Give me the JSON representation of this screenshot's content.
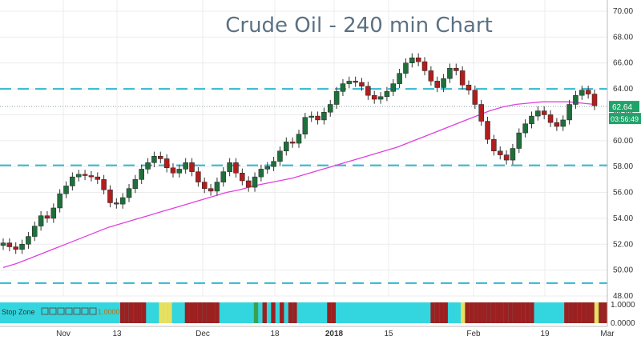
{
  "chart_data": {
    "type": "candlestick",
    "title": "Crude Oil - 240 min Chart",
    "ylim": [
      48.0,
      70.0
    ],
    "y_ticks": [
      "70.00",
      "68.00",
      "66.00",
      "64.00",
      "62.00",
      "60.00",
      "58.00",
      "56.00",
      "54.00",
      "52.00",
      "50.00",
      "48.00"
    ],
    "x_ticks": [
      "Nov",
      "13",
      "Dec",
      "18",
      "2018",
      "15",
      "Feb",
      "19",
      "Mar"
    ],
    "price_label": "62.64",
    "countdown_label": "03:56:49",
    "horizontal_levels": [
      64.0,
      58.1,
      49.0
    ],
    "close_series": [
      52.1,
      51.8,
      51.6,
      52.0,
      52.6,
      53.4,
      54.2,
      54.0,
      54.8,
      55.9,
      56.5,
      57.2,
      57.4,
      57.3,
      57.2,
      57.0,
      56.2,
      55.2,
      55.1,
      55.6,
      56.3,
      57.0,
      57.8,
      58.3,
      58.8,
      58.6,
      57.9,
      57.5,
      57.8,
      58.3,
      57.6,
      56.8,
      56.3,
      56.1,
      56.8,
      57.6,
      58.3,
      57.5,
      56.9,
      56.4,
      57.2,
      57.8,
      58.0,
      58.4,
      59.2,
      59.9,
      59.8,
      60.5,
      61.8,
      61.9,
      61.6,
      62.2,
      62.8,
      63.8,
      64.4,
      64.6,
      64.5,
      64.2,
      63.5,
      63.2,
      63.4,
      63.8,
      64.4,
      65.2,
      66.0,
      66.4,
      66.1,
      65.4,
      64.6,
      64.1,
      64.8,
      65.6,
      65.4,
      64.3,
      63.9,
      62.8,
      61.5,
      60.1,
      59.2,
      58.9,
      58.5,
      59.4,
      60.6,
      61.3,
      61.9,
      62.3,
      62.0,
      61.4,
      61.1,
      61.6,
      62.8,
      63.5,
      63.9,
      63.6,
      62.7
    ],
    "moving_average": [
      50.2,
      50.5,
      50.9,
      51.3,
      51.7,
      52.1,
      52.5,
      52.9,
      53.3,
      53.6,
      53.9,
      54.2,
      54.5,
      54.8,
      55.1,
      55.4,
      55.7,
      56.0,
      56.2,
      56.5,
      56.7,
      56.9,
      57.1,
      57.4,
      57.7,
      58.0,
      58.3,
      58.6,
      58.9,
      59.2,
      59.5,
      59.9,
      60.3,
      60.7,
      61.1,
      61.5,
      61.9,
      62.3,
      62.6,
      62.8,
      62.9,
      63.0,
      63.0,
      63.0,
      62.9,
      62.8
    ],
    "indicator": {
      "label": "Stop Zone",
      "value_label": "1.0000",
      "axis_labels": [
        "1.0000",
        "0.0000"
      ]
    }
  }
}
